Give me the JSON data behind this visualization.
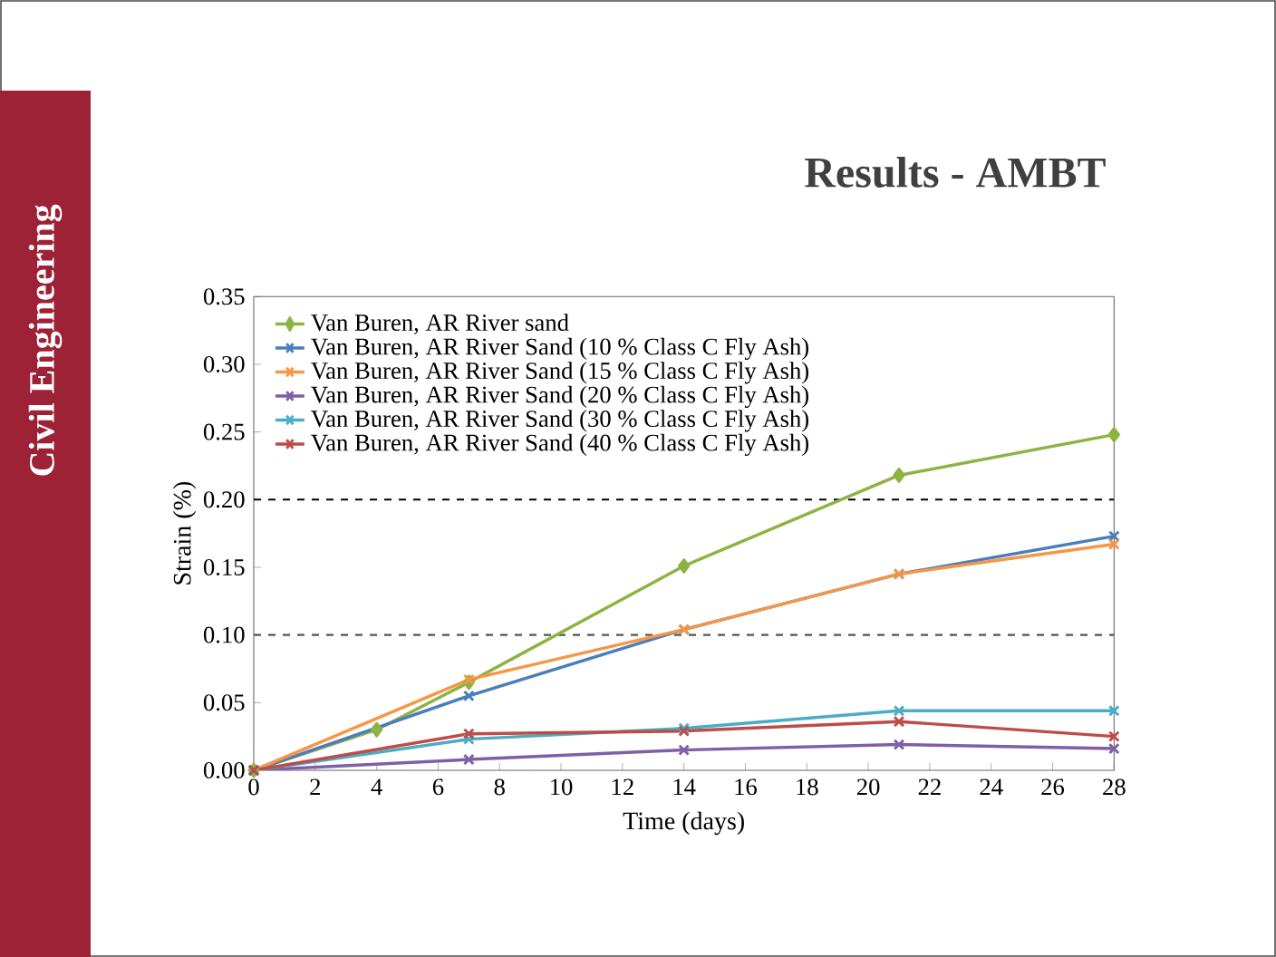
{
  "chart_data": {
    "type": "line",
    "title": "Results - AMBT",
    "xlabel": "Time (days)",
    "ylabel": "Strain (%)",
    "annotations": [
      "Civil Engineering"
    ],
    "xlim": [
      0,
      28
    ],
    "ylim": [
      0,
      0.35
    ],
    "xticks": [
      0,
      2,
      4,
      6,
      8,
      10,
      12,
      14,
      16,
      18,
      20,
      22,
      24,
      26,
      28
    ],
    "yticks": [
      {
        "value": 0,
        "label": "0.00"
      },
      {
        "value": 0.05,
        "label": "0.05"
      },
      {
        "value": 0.1,
        "label": "0.10"
      },
      {
        "value": 0.15,
        "label": "0.15"
      },
      {
        "value": 0.2,
        "label": "0.20"
      },
      {
        "value": 0.25,
        "label": "0.25"
      },
      {
        "value": 0.3,
        "label": "0.30"
      },
      {
        "value": 0.35,
        "label": "0.35"
      }
    ],
    "grid": false,
    "legend": "top left",
    "line_style": "solid",
    "ref_lines": [
      {
        "axis": "y",
        "value": 0.2,
        "line_style": "dashed",
        "color": "#000000"
      },
      {
        "axis": "y",
        "value": 0.1,
        "line_style": "dashed",
        "color": "#555555"
      }
    ],
    "series": [
      {
        "name": "Van Buren, AR River sand",
        "color": "#8db443",
        "marker": "diamond",
        "x": [
          0,
          4,
          7,
          14,
          21,
          28
        ],
        "values": [
          0,
          0.03,
          0.065,
          0.151,
          0.218,
          0.248
        ]
      },
      {
        "name": "Van Buren, AR River Sand (10 % Class C Fly Ash)",
        "color": "#4a7ebb",
        "marker": "cross",
        "x": [
          0,
          7,
          14,
          21,
          28
        ],
        "values": [
          0,
          0.055,
          0.104,
          0.145,
          0.173
        ]
      },
      {
        "name": "Van Buren, AR River Sand (15 % Class C Fly Ash)",
        "color": "#f79646",
        "marker": "cross",
        "x": [
          0,
          7,
          14,
          21,
          28
        ],
        "values": [
          0,
          0.067,
          0.104,
          0.145,
          0.167
        ]
      },
      {
        "name": "Van Buren, AR River Sand (20 % Class C Fly Ash)",
        "color": "#7f5fa5",
        "marker": "cross",
        "x": [
          0,
          7,
          14,
          21,
          28
        ],
        "values": [
          0,
          0.008,
          0.015,
          0.019,
          0.016
        ]
      },
      {
        "name": "Van Buren, AR River Sand (30 % Class C Fly Ash)",
        "color": "#4bacc6",
        "marker": "cross",
        "x": [
          0,
          7,
          14,
          21,
          28
        ],
        "values": [
          0,
          0.023,
          0.031,
          0.044,
          0.044
        ]
      },
      {
        "name": "Van Buren, AR River Sand (40 % Class C Fly Ash)",
        "color": "#be4b48",
        "marker": "cross",
        "x": [
          0,
          7,
          14,
          21,
          28
        ],
        "values": [
          0,
          0.027,
          0.029,
          0.036,
          0.025
        ]
      }
    ]
  }
}
